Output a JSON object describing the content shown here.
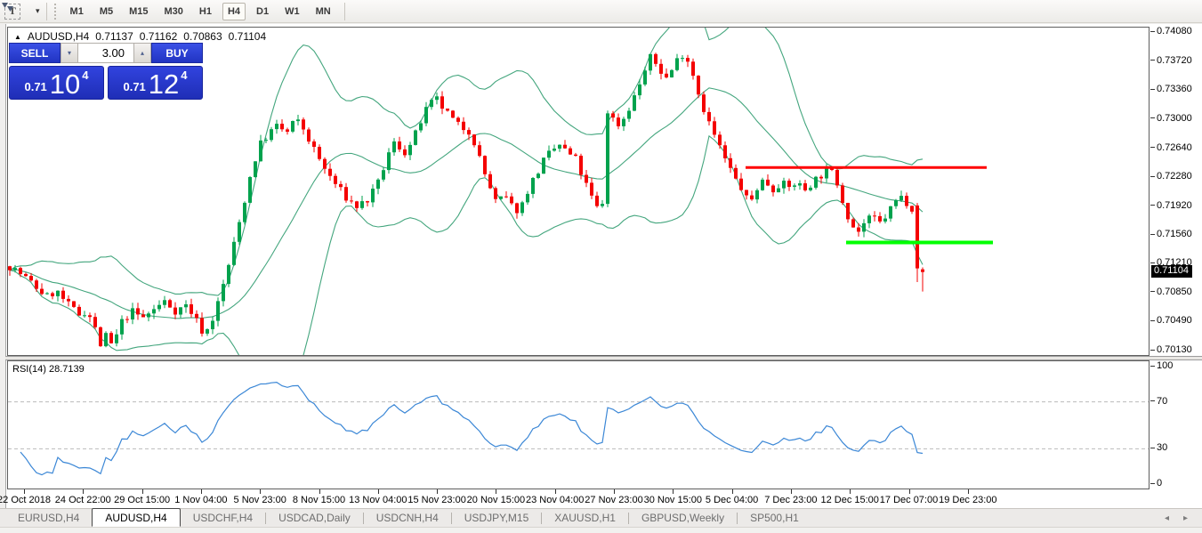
{
  "toolbar": {
    "text_tool_label": "T",
    "timeframes": [
      "M1",
      "M5",
      "M15",
      "M30",
      "H1",
      "H4",
      "D1",
      "W1",
      "MN"
    ],
    "active_timeframe": "H4"
  },
  "chart_header": {
    "symbol_timeframe": "AUDUSD,H4",
    "open": "0.71137",
    "high": "0.71162",
    "low": "0.70863",
    "close": "0.71104"
  },
  "trade_panel": {
    "sell_label": "SELL",
    "buy_label": "BUY",
    "volume": "3.00",
    "sell_price": {
      "prefix": "0.71",
      "big": "10",
      "sup": "4"
    },
    "buy_price": {
      "prefix": "0.71",
      "big": "12",
      "sup": "4"
    }
  },
  "price_axis": {
    "labels": [
      "0.74080",
      "0.73720",
      "0.73360",
      "0.73000",
      "0.72640",
      "0.72280",
      "0.71920",
      "0.71560",
      "0.71210",
      "0.70850",
      "0.70490",
      "0.70130"
    ],
    "current": "0.71104"
  },
  "time_axis": {
    "labels": [
      "22 Oct 2018",
      "24 Oct 22:00",
      "29 Oct 15:00",
      "1 Nov 04:00",
      "5 Nov 23:00",
      "8 Nov 15:00",
      "13 Nov 04:00",
      "15 Nov 23:00",
      "20 Nov 15:00",
      "23 Nov 04:00",
      "27 Nov 23:00",
      "30 Nov 15:00",
      "5 Dec 04:00",
      "7 Dec 23:00",
      "12 Dec 15:00",
      "17 Dec 07:00",
      "19 Dec 23:00"
    ]
  },
  "rsi_panel": {
    "label": "RSI(14) 28.7139",
    "axis_labels": [
      "100",
      "70",
      "30",
      "0"
    ]
  },
  "tab_bar": {
    "tabs": [
      "EURUSD,H4",
      "AUDUSD,H4",
      "USDCHF,H4",
      "USDCAD,Daily",
      "USDCNH,H4",
      "USDJPY,M15",
      "XAUUSD,H1",
      "GBPUSD,Weekly",
      "SP500,H1"
    ],
    "active": "AUDUSD,H4",
    "nav_prev": "◂",
    "nav_next": "▸"
  },
  "chart_data": {
    "type": "candlestick",
    "symbol": "AUDUSD",
    "timeframe": "H4",
    "title": "AUDUSD,H4",
    "current_ohlc": {
      "open": 0.71137,
      "high": 0.71162,
      "low": 0.70863,
      "close": 0.71104
    },
    "ylim": {
      "top": 0.7408,
      "bottom": 0.7013
    },
    "y_tick_step": 0.0036,
    "grid": false,
    "candle_count": 172,
    "price_path_keypoints": [
      [
        10,
        0.7118
      ],
      [
        25,
        0.7106
      ],
      [
        40,
        0.7091
      ],
      [
        52,
        0.708
      ],
      [
        62,
        0.7087
      ],
      [
        75,
        0.707
      ],
      [
        88,
        0.7058
      ],
      [
        97,
        0.7063
      ],
      [
        105,
        0.7043
      ],
      [
        112,
        0.702
      ],
      [
        119,
        0.7032
      ],
      [
        126,
        0.7016
      ],
      [
        134,
        0.7046
      ],
      [
        147,
        0.7062
      ],
      [
        159,
        0.7053
      ],
      [
        171,
        0.7063
      ],
      [
        184,
        0.7074
      ],
      [
        197,
        0.7062
      ],
      [
        209,
        0.707
      ],
      [
        220,
        0.705
      ],
      [
        229,
        0.7032
      ],
      [
        237,
        0.705
      ],
      [
        246,
        0.7078
      ],
      [
        255,
        0.7115
      ],
      [
        264,
        0.7153
      ],
      [
        273,
        0.7195
      ],
      [
        282,
        0.7238
      ],
      [
        291,
        0.7268
      ],
      [
        301,
        0.7282
      ],
      [
        311,
        0.7292
      ],
      [
        321,
        0.7282
      ],
      [
        331,
        0.73
      ],
      [
        340,
        0.7288
      ],
      [
        352,
        0.7262
      ],
      [
        364,
        0.7238
      ],
      [
        377,
        0.7218
      ],
      [
        390,
        0.72
      ],
      [
        400,
        0.7192
      ],
      [
        413,
        0.72
      ],
      [
        424,
        0.722
      ],
      [
        434,
        0.7252
      ],
      [
        443,
        0.7272
      ],
      [
        453,
        0.7258
      ],
      [
        462,
        0.727
      ],
      [
        471,
        0.7295
      ],
      [
        480,
        0.7315
      ],
      [
        489,
        0.7325
      ],
      [
        498,
        0.7312
      ],
      [
        507,
        0.73
      ],
      [
        516,
        0.729
      ],
      [
        525,
        0.7288
      ],
      [
        533,
        0.727
      ],
      [
        541,
        0.724
      ],
      [
        549,
        0.7218
      ],
      [
        557,
        0.7195
      ],
      [
        566,
        0.7205
      ],
      [
        574,
        0.7192
      ],
      [
        583,
        0.7186
      ],
      [
        592,
        0.7212
      ],
      [
        601,
        0.723
      ],
      [
        610,
        0.7248
      ],
      [
        619,
        0.726
      ],
      [
        628,
        0.7268
      ],
      [
        637,
        0.7258
      ],
      [
        646,
        0.725
      ],
      [
        655,
        0.7225
      ],
      [
        663,
        0.7205
      ],
      [
        670,
        0.719
      ],
      [
        676,
        0.7196
      ],
      [
        682,
        0.731
      ],
      [
        688,
        0.73
      ],
      [
        696,
        0.7292
      ],
      [
        704,
        0.731
      ],
      [
        713,
        0.733
      ],
      [
        722,
        0.7355
      ],
      [
        731,
        0.7378
      ],
      [
        740,
        0.7362
      ],
      [
        749,
        0.735
      ],
      [
        759,
        0.7372
      ],
      [
        768,
        0.7384
      ],
      [
        777,
        0.736
      ],
      [
        786,
        0.7325
      ],
      [
        795,
        0.7298
      ],
      [
        805,
        0.7272
      ],
      [
        815,
        0.7248
      ],
      [
        825,
        0.7226
      ],
      [
        835,
        0.721
      ],
      [
        841,
        0.7192
      ],
      [
        849,
        0.7214
      ],
      [
        858,
        0.7226
      ],
      [
        867,
        0.7212
      ],
      [
        876,
        0.7222
      ],
      [
        885,
        0.7214
      ],
      [
        894,
        0.7222
      ],
      [
        903,
        0.7212
      ],
      [
        912,
        0.7222
      ],
      [
        921,
        0.723
      ],
      [
        930,
        0.7238
      ],
      [
        938,
        0.7228
      ],
      [
        946,
        0.72
      ],
      [
        954,
        0.7175
      ],
      [
        962,
        0.7158
      ],
      [
        971,
        0.7172
      ],
      [
        980,
        0.7178
      ],
      [
        989,
        0.717
      ],
      [
        998,
        0.7186
      ],
      [
        1007,
        0.72
      ],
      [
        1015,
        0.7205
      ],
      [
        1022,
        0.7188
      ],
      [
        1029,
        0.7196
      ]
    ],
    "last_candles": [
      {
        "o": 0.7193,
        "h": 0.7196,
        "l": 0.7098,
        "c": 0.7115
      },
      {
        "o": 0.71137,
        "h": 0.71162,
        "l": 0.70863,
        "c": 0.71104
      }
    ],
    "overlays": {
      "bollinger": {
        "period": 20,
        "deviation": 2
      },
      "resistance_line": {
        "price": 0.724,
        "x_from": 837,
        "x_to": 1108,
        "color": "#ff0000",
        "width": 3
      },
      "support_line": {
        "price": 0.7147,
        "x_from": 950,
        "x_to": 1115,
        "color": "#00ff00",
        "width": 4
      }
    },
    "rsi": {
      "period": 14,
      "current_value": 28.7139,
      "levels": [
        100,
        70,
        30,
        0
      ],
      "overbought": 70,
      "oversold": 30
    },
    "colors": {
      "bull": "#00a24d",
      "bear": "#f40000",
      "bands": "#44a67e",
      "rsi_line": "#3b87d6",
      "panel_blue": "#2636cf",
      "current_price_bg": "#000000"
    }
  }
}
